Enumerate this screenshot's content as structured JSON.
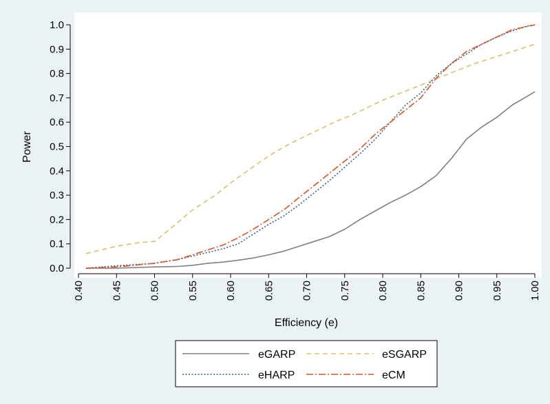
{
  "colors": {
    "background": "#eaf2f3",
    "plot_background": "#ffffff",
    "axis": "#000000",
    "eGARP": "#7f7f7f",
    "eSGARP": "#d9c06a",
    "eHARP": "#2e5f8f",
    "eCM": "#e0501f"
  },
  "chart_data": {
    "type": "line",
    "title": "",
    "xlabel": "Efficiency (e)",
    "ylabel": "Power",
    "xlim": [
      0.41,
      1.0
    ],
    "ylim": [
      0.0,
      1.0
    ],
    "x_ticks": [
      "0.40",
      "0.45",
      "0.50",
      "0.55",
      "0.60",
      "0.65",
      "0.70",
      "0.75",
      "0.80",
      "0.85",
      "0.90",
      "0.95",
      "1.00"
    ],
    "x_tick_values": [
      0.4,
      0.45,
      0.5,
      0.55,
      0.6,
      0.65,
      0.7,
      0.75,
      0.8,
      0.85,
      0.9,
      0.95,
      1.0
    ],
    "y_ticks": [
      "0.0",
      "0.1",
      "0.2",
      "0.3",
      "0.4",
      "0.5",
      "0.6",
      "0.7",
      "0.8",
      "0.9",
      "1.0"
    ],
    "y_tick_values": [
      0.0,
      0.1,
      0.2,
      0.3,
      0.4,
      0.5,
      0.6,
      0.7,
      0.8,
      0.9,
      1.0
    ],
    "grid": false,
    "legend_position": "bottom",
    "series": [
      {
        "name": "eGARP",
        "style": "solid",
        "x": [
          0.41,
          0.45,
          0.5,
          0.53,
          0.55,
          0.57,
          0.59,
          0.61,
          0.63,
          0.65,
          0.67,
          0.69,
          0.71,
          0.73,
          0.75,
          0.77,
          0.79,
          0.81,
          0.83,
          0.85,
          0.87,
          0.89,
          0.91,
          0.93,
          0.95,
          0.97,
          1.0
        ],
        "y": [
          0.0,
          0.0,
          0.005,
          0.007,
          0.012,
          0.02,
          0.025,
          0.033,
          0.042,
          0.055,
          0.07,
          0.09,
          0.11,
          0.13,
          0.16,
          0.2,
          0.235,
          0.27,
          0.3,
          0.335,
          0.38,
          0.45,
          0.53,
          0.58,
          0.62,
          0.67,
          0.725
        ]
      },
      {
        "name": "eSGARP",
        "style": "dashed",
        "x": [
          0.41,
          0.45,
          0.48,
          0.5,
          0.52,
          0.55,
          0.58,
          0.6,
          0.62,
          0.64,
          0.66,
          0.68,
          0.7,
          0.72,
          0.74,
          0.76,
          0.78,
          0.8,
          0.82,
          0.84,
          0.86,
          0.88,
          0.9,
          0.92,
          0.94,
          0.96,
          0.98,
          1.0
        ],
        "y": [
          0.06,
          0.09,
          0.105,
          0.11,
          0.16,
          0.24,
          0.3,
          0.35,
          0.395,
          0.44,
          0.48,
          0.515,
          0.545,
          0.575,
          0.605,
          0.63,
          0.66,
          0.69,
          0.715,
          0.74,
          0.765,
          0.79,
          0.815,
          0.84,
          0.86,
          0.88,
          0.9,
          0.92
        ]
      },
      {
        "name": "eHARP",
        "style": "dotted",
        "x": [
          0.41,
          0.45,
          0.5,
          0.53,
          0.55,
          0.57,
          0.59,
          0.61,
          0.63,
          0.65,
          0.67,
          0.69,
          0.71,
          0.73,
          0.75,
          0.77,
          0.79,
          0.81,
          0.83,
          0.85,
          0.87,
          0.89,
          0.91,
          0.93,
          0.95,
          0.97,
          0.99,
          1.0
        ],
        "y": [
          0.0,
          0.01,
          0.02,
          0.035,
          0.05,
          0.065,
          0.08,
          0.1,
          0.14,
          0.18,
          0.215,
          0.26,
          0.31,
          0.36,
          0.415,
          0.47,
          0.53,
          0.6,
          0.67,
          0.72,
          0.79,
          0.84,
          0.88,
          0.92,
          0.95,
          0.975,
          0.995,
          1.0
        ]
      },
      {
        "name": "eCM",
        "style": "dashdot",
        "x": [
          0.41,
          0.45,
          0.5,
          0.53,
          0.55,
          0.57,
          0.59,
          0.61,
          0.63,
          0.65,
          0.67,
          0.69,
          0.71,
          0.73,
          0.75,
          0.77,
          0.79,
          0.81,
          0.83,
          0.85,
          0.87,
          0.89,
          0.91,
          0.93,
          0.95,
          0.97,
          1.0
        ],
        "y": [
          0.0,
          0.005,
          0.02,
          0.035,
          0.055,
          0.075,
          0.095,
          0.125,
          0.16,
          0.2,
          0.24,
          0.29,
          0.34,
          0.39,
          0.44,
          0.49,
          0.55,
          0.6,
          0.65,
          0.7,
          0.78,
          0.84,
          0.89,
          0.92,
          0.95,
          0.98,
          1.0
        ]
      }
    ]
  }
}
